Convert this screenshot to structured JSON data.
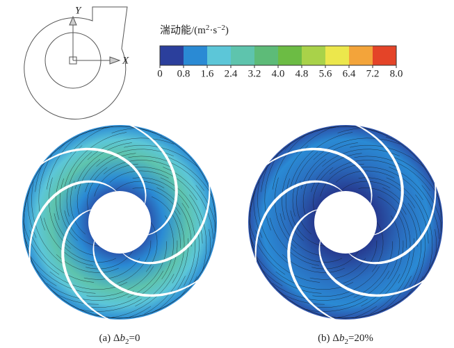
{
  "schematic": {
    "y_label": "Y",
    "x_label": "X"
  },
  "colorbar": {
    "title": {
      "text": "湍动能/(m",
      "sup1": "2",
      "mid": "·s",
      "sup2": "−2",
      "end": ")"
    },
    "lim": [
      0,
      8
    ],
    "colors": [
      "#2b3f9c",
      "#2a8ad4",
      "#5cc6d8",
      "#5ec4ad",
      "#5dbb78",
      "#6cbc44",
      "#a9d249",
      "#ece74c",
      "#f3a43a",
      "#e44428"
    ],
    "ticks": [
      0,
      0.8,
      1.6,
      2.4,
      3.2,
      {
        "value": 4,
        "label": "4.0"
      },
      4.8,
      5.6,
      6.4,
      7.2,
      {
        "value": 8,
        "label": "8.0"
      }
    ]
  },
  "panels": [
    {
      "caption": {
        "prefix": "(a) Δ",
        "var": "b",
        "sub": "2",
        "suffix": "=0"
      }
    },
    {
      "caption": {
        "prefix": "(b) Δ",
        "var": "b",
        "sub": "2",
        "suffix": "=20%"
      }
    }
  ]
}
